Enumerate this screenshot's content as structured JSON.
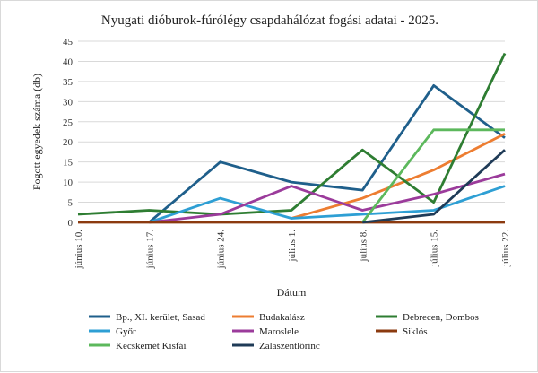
{
  "chart_data": {
    "type": "line",
    "title": "Nyugati dióburok-fúrólégy csapdahálózat fogási adatai - 2025.",
    "xlabel": "Dátum",
    "ylabel": "Fogott egyedek száma (db)",
    "ylim": [
      0,
      45
    ],
    "yticks": [
      0,
      5,
      10,
      15,
      20,
      25,
      30,
      35,
      40,
      45
    ],
    "grid": true,
    "legend": "bottom",
    "categories": [
      "június 10.",
      "június 17.",
      "június 24.",
      "július 1.",
      "július 8.",
      "július 15.",
      "július 22."
    ],
    "series": [
      {
        "name": "Bp., XI. kerület, Sasad",
        "color": "#1f5f8b",
        "values": [
          null,
          0,
          15,
          10,
          8,
          34,
          21
        ]
      },
      {
        "name": "Budakalász",
        "color": "#ed7d31",
        "values": [
          null,
          null,
          null,
          1,
          6,
          13,
          22
        ]
      },
      {
        "name": "Debrecen, Dombos",
        "color": "#2e7d32",
        "values": [
          2,
          3,
          2,
          3,
          18,
          5,
          42
        ]
      },
      {
        "name": "Győr",
        "color": "#2e9fd4",
        "values": [
          null,
          0,
          6,
          1,
          2,
          3,
          9
        ]
      },
      {
        "name": "Maroslele",
        "color": "#9b3b9b",
        "values": [
          null,
          0,
          2,
          9,
          3,
          7,
          12
        ]
      },
      {
        "name": "Siklós",
        "color": "#8b3a0f",
        "values": [
          0,
          0,
          0,
          0,
          0,
          0,
          0
        ]
      },
      {
        "name": "Kecskemét Kisfái",
        "color": "#5cb85c",
        "values": [
          null,
          null,
          null,
          null,
          0,
          23,
          23
        ]
      },
      {
        "name": "Zalaszentlőrinc",
        "color": "#1f3b57",
        "values": [
          null,
          null,
          null,
          null,
          0,
          2,
          18
        ]
      }
    ]
  }
}
